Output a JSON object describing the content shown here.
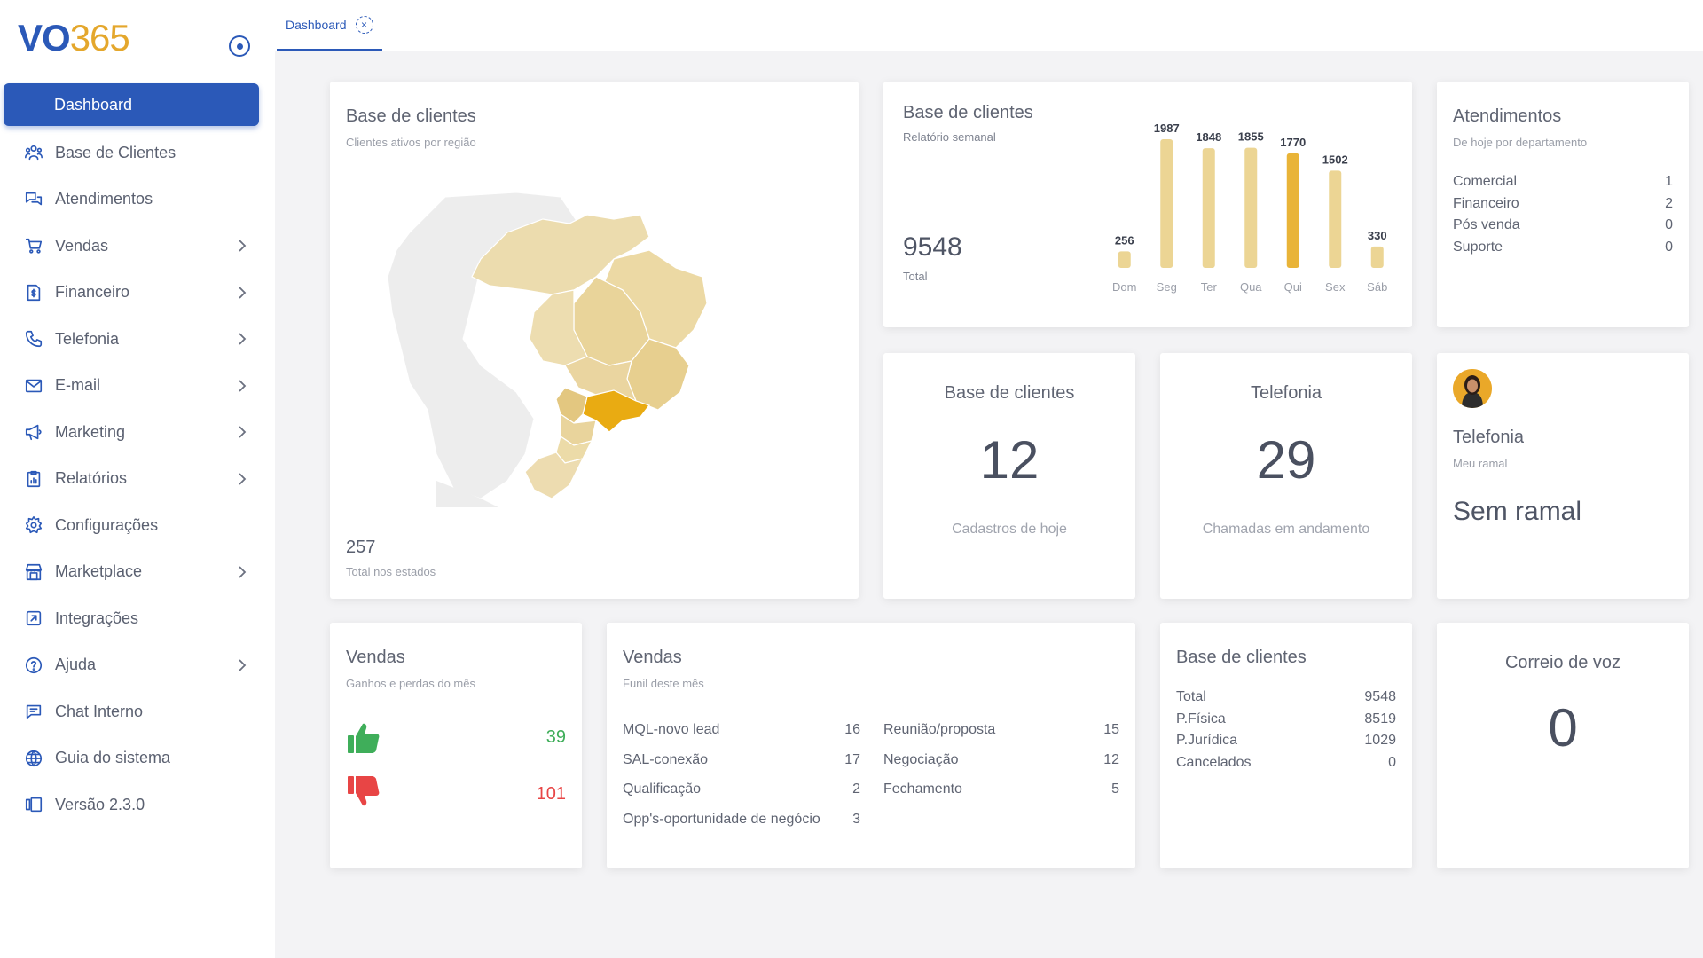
{
  "brand": {
    "logo_vo": "VO",
    "logo_num": "365"
  },
  "sidebar": {
    "items": [
      {
        "label": "Dashboard",
        "icon": "dashboard-icon",
        "active": true,
        "chevron": false
      },
      {
        "label": "Base de Clientes",
        "icon": "users-icon",
        "chevron": false
      },
      {
        "label": "Atendimentos",
        "icon": "chat-icon",
        "chevron": false
      },
      {
        "label": "Vendas",
        "icon": "cart-icon",
        "chevron": true
      },
      {
        "label": "Financeiro",
        "icon": "money-file-icon",
        "chevron": true
      },
      {
        "label": "Telefonia",
        "icon": "phone-icon",
        "chevron": true
      },
      {
        "label": "E-mail",
        "icon": "mail-icon",
        "chevron": true
      },
      {
        "label": "Marketing",
        "icon": "megaphone-icon",
        "chevron": true
      },
      {
        "label": "Relatórios",
        "icon": "report-icon",
        "chevron": true
      },
      {
        "label": "Configurações",
        "icon": "gear-icon",
        "chevron": false
      },
      {
        "label": "Marketplace",
        "icon": "store-icon",
        "chevron": true
      },
      {
        "label": "Integrações",
        "icon": "integration-icon",
        "chevron": false
      },
      {
        "label": "Ajuda",
        "icon": "help-icon",
        "chevron": true
      },
      {
        "label": "Chat Interno",
        "icon": "message-icon",
        "chevron": false
      },
      {
        "label": "Guia do sistema",
        "icon": "globe-icon",
        "chevron": false
      },
      {
        "label": "Versão 2.3.0",
        "icon": "version-icon",
        "chevron": false
      }
    ]
  },
  "tabs": [
    {
      "label": "Dashboard",
      "close": "×"
    }
  ],
  "map_card": {
    "title": "Base de clientes",
    "subtitle": "Clientes ativos por região",
    "total": "257",
    "total_label": "Total nos estados"
  },
  "week_card": {
    "title": "Base de clientes",
    "subtitle": "Relatório semanal",
    "total": "9548",
    "total_label": "Total"
  },
  "chart_data": {
    "type": "bar",
    "categories": [
      "Dom",
      "Seg",
      "Ter",
      "Qua",
      "Qui",
      "Sex",
      "Sáb"
    ],
    "values": [
      256,
      1987,
      1848,
      1855,
      1770,
      1502,
      330
    ],
    "highlight_index": 4,
    "colors": {
      "bar": "#ecd594",
      "highlight": "#e9b438"
    },
    "ylim": [
      0,
      1987
    ]
  },
  "atend_card": {
    "title": "Atendimentos",
    "subtitle": "De hoje por departamento",
    "rows": [
      {
        "k": "Comercial",
        "v": "1"
      },
      {
        "k": "Financeiro",
        "v": "2"
      },
      {
        "k": "Pós venda",
        "v": "0"
      },
      {
        "k": "Suporte",
        "v": "0"
      }
    ]
  },
  "cad_card": {
    "title": "Base de clientes",
    "value": "12",
    "label": "Cadastros de hoje"
  },
  "tel_card": {
    "title": "Telefonia",
    "value": "29",
    "label": "Chamadas em andamento"
  },
  "ramal_card": {
    "title": "Telefonia",
    "subtitle": "Meu ramal",
    "value": "Sem ramal"
  },
  "vgp_card": {
    "title": "Vendas",
    "subtitle": "Ganhos e perdas do mês",
    "won": "39",
    "lost": "101",
    "won_color": "#3fae5a",
    "lost_color": "#e84545"
  },
  "funil_card": {
    "title": "Vendas",
    "subtitle": "Funil deste mês",
    "left": [
      {
        "k": "MQL-novo lead",
        "v": "16"
      },
      {
        "k": "SAL-conexão",
        "v": "17"
      },
      {
        "k": "Qualificação",
        "v": "2"
      },
      {
        "k": "Opp's-oportunidade de negócio",
        "v": "3"
      }
    ],
    "right": [
      {
        "k": "Reunião/proposta",
        "v": "15"
      },
      {
        "k": "Negociação",
        "v": "12"
      },
      {
        "k": "Fechamento",
        "v": "5"
      }
    ]
  },
  "base_card": {
    "title": "Base de clientes",
    "rows": [
      {
        "k": "Total",
        "v": "9548"
      },
      {
        "k": "P.Física",
        "v": "8519"
      },
      {
        "k": "P.Jurídica",
        "v": "1029"
      },
      {
        "k": "Cancelados",
        "v": "0"
      }
    ]
  },
  "voz_card": {
    "title": "Correio de voz",
    "value": "0"
  },
  "colors": {
    "accent": "#2b59b8",
    "gold": "#e4a72c"
  }
}
